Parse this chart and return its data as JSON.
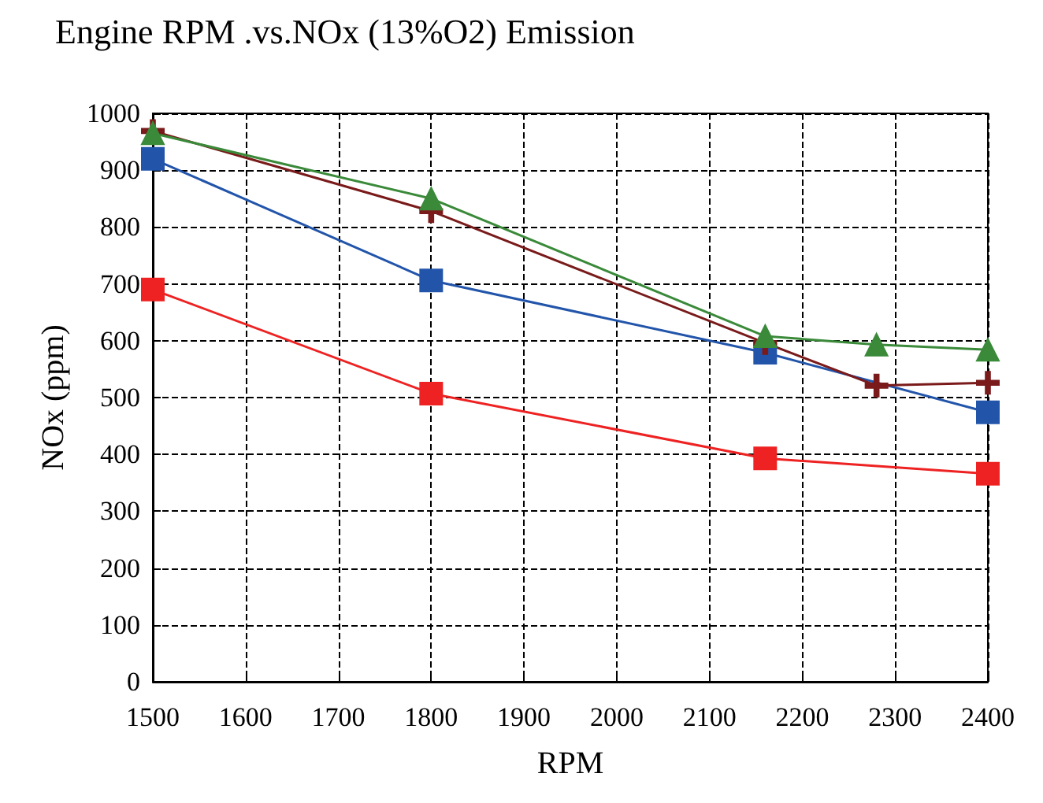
{
  "chart_data": {
    "type": "line",
    "title": "Engine RPM .vs.NOx (13%O2) Emission",
    "xlabel": "RPM",
    "ylabel": "NOx (ppm)",
    "xlim": [
      1500,
      2400
    ],
    "xticks": [
      1500,
      1600,
      1700,
      1800,
      1900,
      2000,
      2100,
      2200,
      2300,
      2400
    ],
    "ylim": [
      0,
      1000
    ],
    "yticks": [
      0,
      100,
      200,
      300,
      400,
      500,
      600,
      700,
      800,
      900,
      1000
    ],
    "grid": true,
    "line_style": "solid",
    "series": [
      {
        "color": "#ee2222",
        "marker": "square",
        "x": [
          1500,
          1800,
          2160,
          2400
        ],
        "values": [
          690,
          507,
          393,
          366
        ]
      },
      {
        "color": "#2255aa",
        "marker": "square",
        "x": [
          1500,
          1800,
          2160,
          2400
        ],
        "values": [
          920,
          706,
          579,
          474
        ]
      },
      {
        "color": "#7a1a1a",
        "marker": "cross",
        "x": [
          1500,
          1800,
          2160,
          2280,
          2400
        ],
        "values": [
          969,
          828,
          596,
          521,
          526
        ]
      },
      {
        "color": "#3a8a3a",
        "marker": "triangle",
        "x": [
          1500,
          1800,
          2160,
          2280,
          2400
        ],
        "values": [
          965,
          850,
          608,
          593,
          584
        ]
      }
    ]
  }
}
